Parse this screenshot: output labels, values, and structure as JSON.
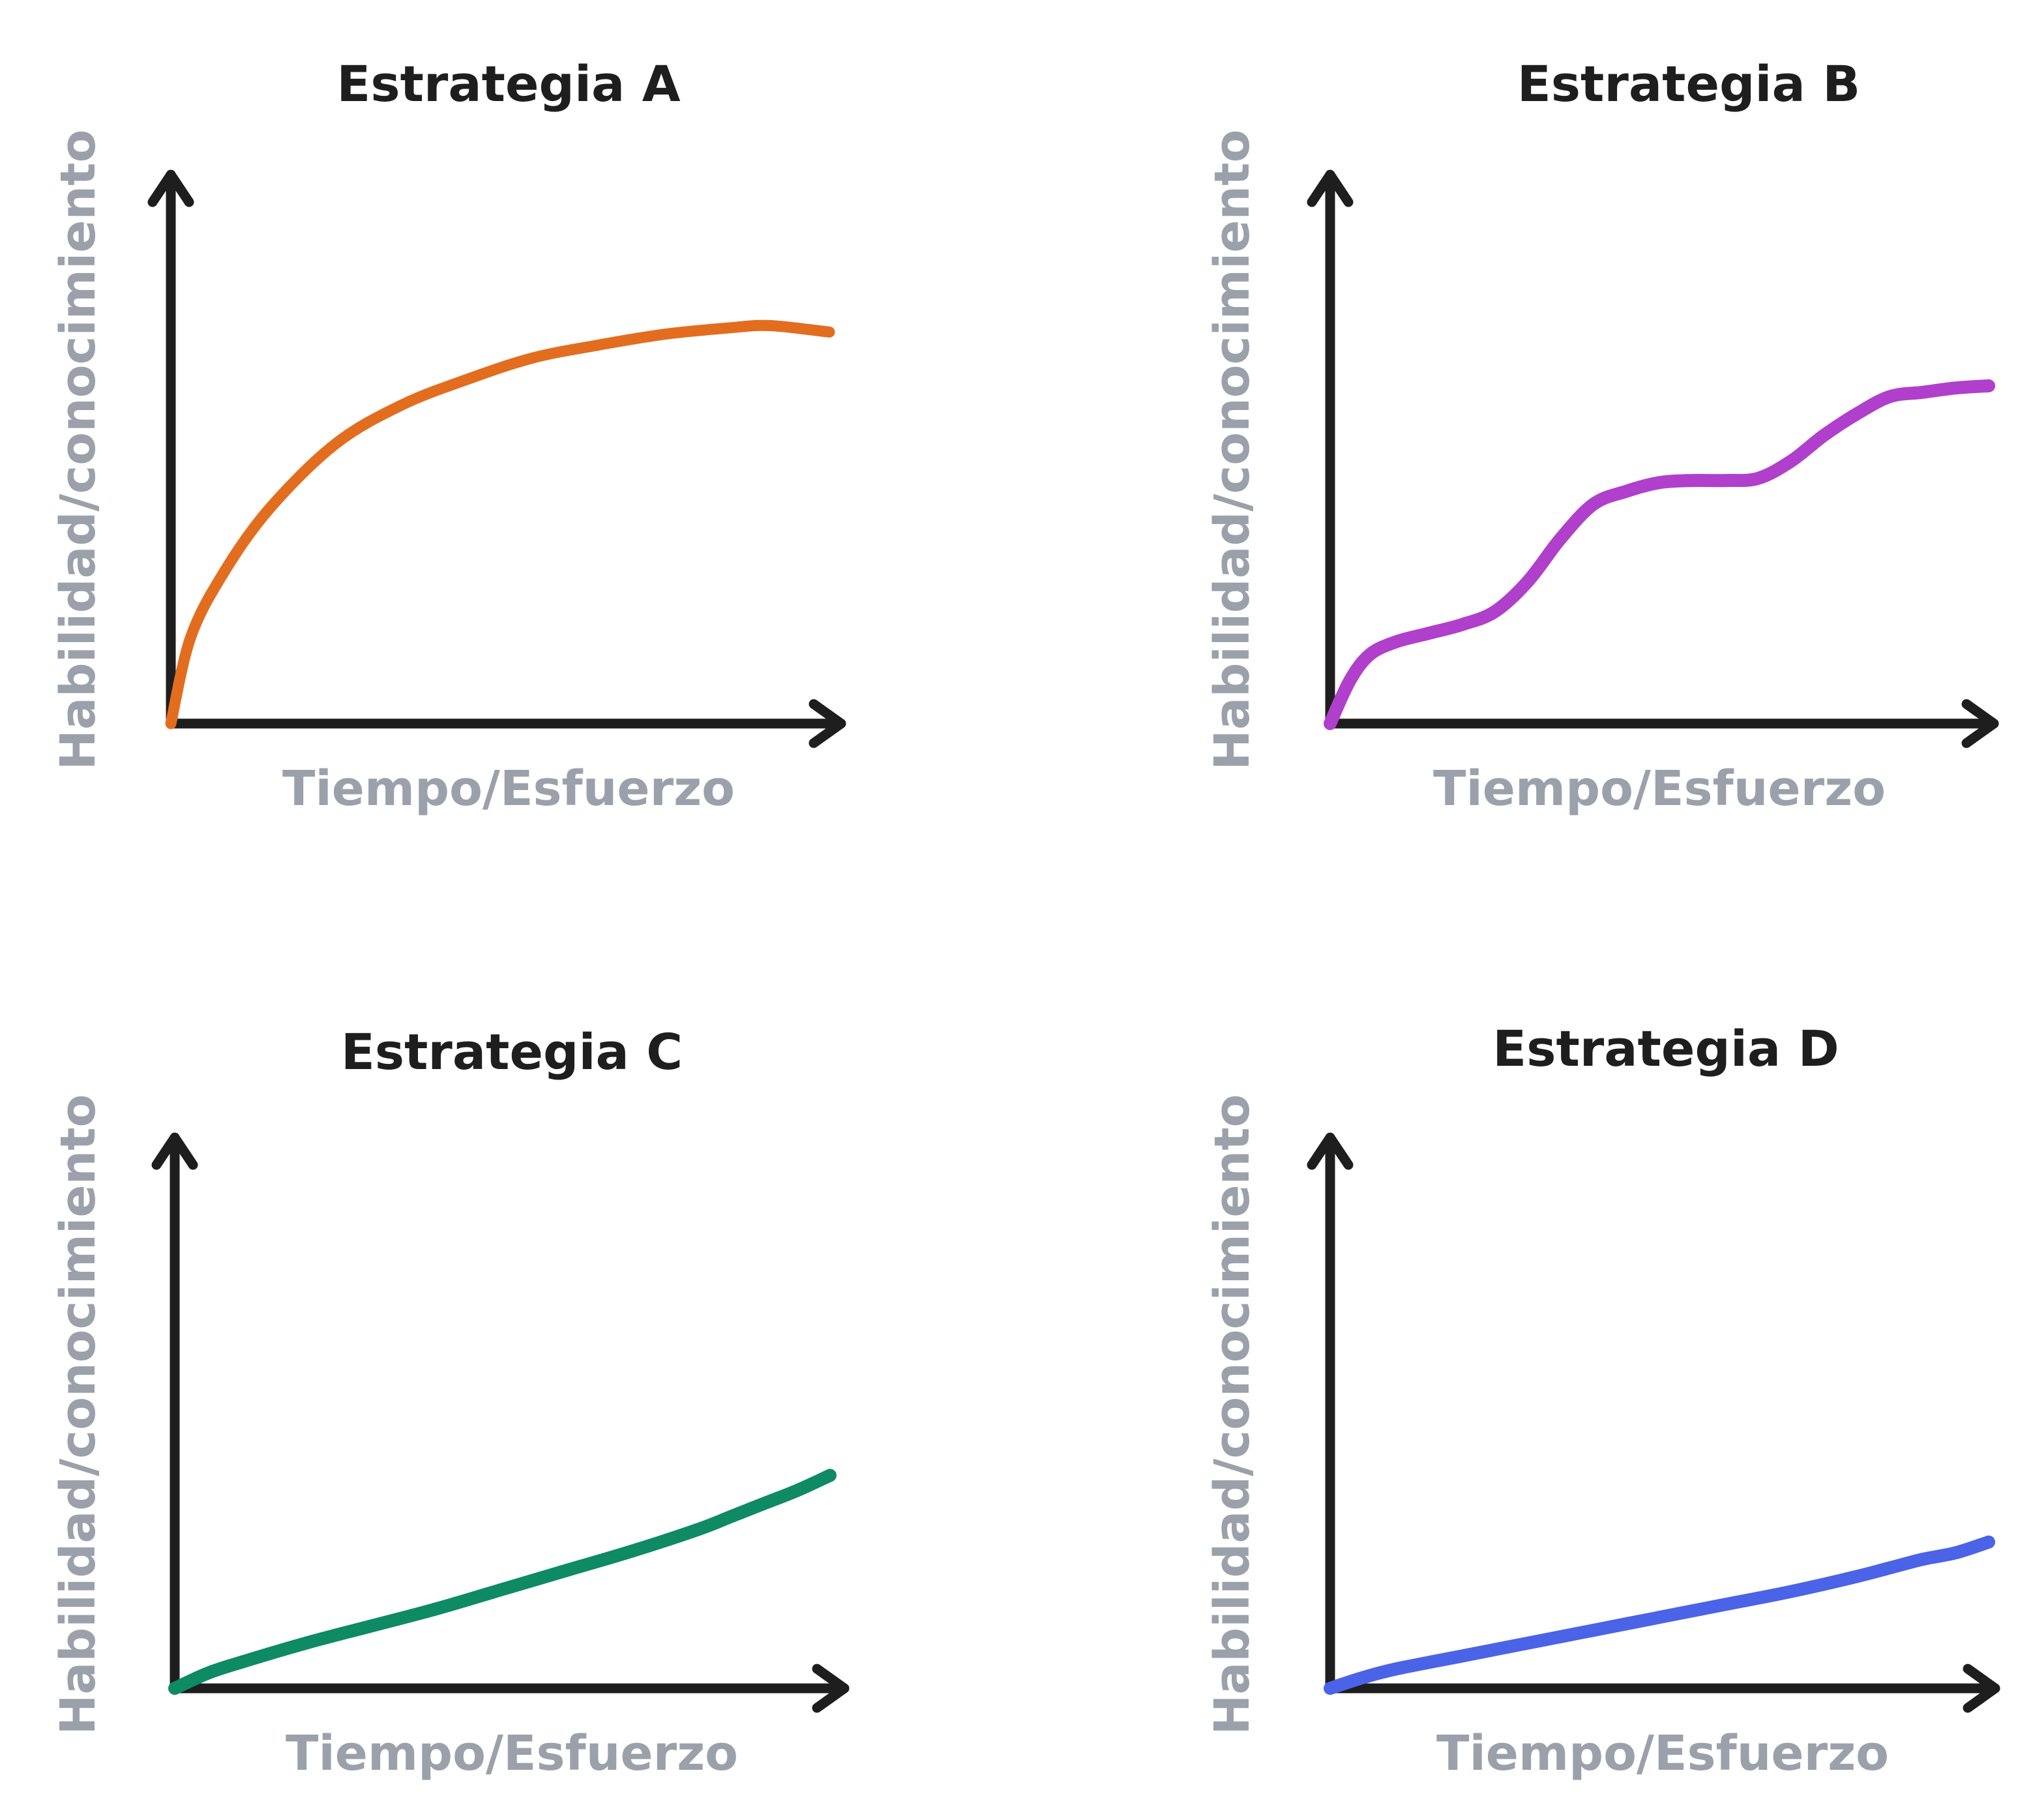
{
  "chart_data": [
    {
      "type": "line",
      "title": "Estrategia A",
      "xlabel": "Tiempo/Esfuerzo",
      "ylabel": "Habilidad/conocimiento",
      "color": "#e36d1e",
      "xlim": [
        0,
        100
      ],
      "ylim": [
        0,
        100
      ],
      "grid": false,
      "x": [
        0,
        3,
        8,
        15,
        25,
        35,
        45,
        55,
        65,
        75,
        85,
        91,
        100
      ],
      "y": [
        0,
        20,
        35,
        50,
        65,
        74,
        80,
        85,
        88,
        90.5,
        92,
        92.5,
        91
      ]
    },
    {
      "type": "line",
      "title": "Estrategia B",
      "xlabel": "Tiempo/Esfuerzo",
      "ylabel": "Habilidad/conocimiento",
      "color": "#b03fcc",
      "xlim": [
        0,
        100
      ],
      "ylim": [
        0,
        100
      ],
      "grid": false,
      "x": [
        0,
        3,
        6,
        10,
        15,
        20,
        25,
        30,
        35,
        40,
        45,
        50,
        55,
        60,
        65,
        70,
        75,
        80,
        85,
        90,
        95,
        100
      ],
      "y": [
        0,
        10,
        16,
        19,
        21,
        23,
        26,
        33,
        43,
        51,
        54,
        56,
        56.5,
        56.5,
        57,
        61,
        67,
        72,
        76,
        77,
        78,
        78.5
      ]
    },
    {
      "type": "line",
      "title": "Estrategia C",
      "xlabel": "Tiempo/Esfuerzo",
      "ylabel": "Habilidad/conocimiento",
      "color": "#0e8a64",
      "xlim": [
        0,
        100
      ],
      "ylim": [
        0,
        100
      ],
      "grid": false,
      "x": [
        0,
        5,
        10,
        20,
        30,
        40,
        50,
        60,
        70,
        80,
        85,
        90,
        95,
        100
      ],
      "y": [
        0,
        3.5,
        6,
        10.5,
        14.5,
        18.5,
        23,
        27.5,
        32,
        37,
        40,
        43,
        46,
        49.5
      ]
    },
    {
      "type": "line",
      "title": "Estrategia D",
      "xlabel": "Tiempo/Esfuerzo",
      "ylabel": "Habilidad/conocimiento",
      "color": "#4a63e7",
      "xlim": [
        0,
        100
      ],
      "ylim": [
        0,
        100
      ],
      "grid": false,
      "x": [
        0,
        5,
        10,
        20,
        30,
        40,
        50,
        60,
        70,
        80,
        85,
        90,
        95,
        100
      ],
      "y": [
        0,
        2.5,
        4.5,
        7.5,
        10.5,
        13.5,
        16.5,
        19.5,
        22.5,
        26,
        28,
        30,
        31.5,
        34
      ]
    }
  ]
}
